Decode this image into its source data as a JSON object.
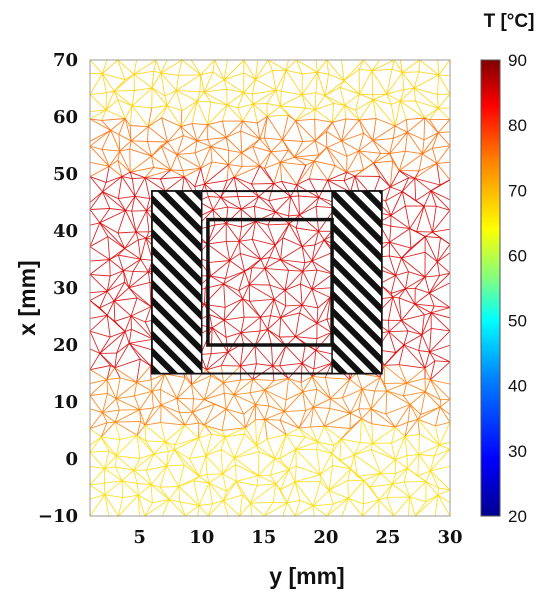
{
  "chart_data": {
    "type": "heatmap",
    "xlabel": "y [mm]",
    "ylabel": "x [mm]",
    "x_ticks": [
      "5",
      "10",
      "15",
      "20",
      "25",
      "30"
    ],
    "y_ticks": [
      "−10",
      "0",
      "10",
      "20",
      "30",
      "40",
      "50",
      "60",
      "70"
    ],
    "xlim": [
      1,
      30
    ],
    "ylim": [
      -10,
      70
    ],
    "colorbar": {
      "title": "T [°C]",
      "ticks": [
        "20",
        "30",
        "40",
        "50",
        "60",
        "70",
        "80",
        "90"
      ],
      "range": [
        20,
        90
      ],
      "colormap": [
        "#00008f",
        "#0000ff",
        "#0080ff",
        "#00ffff",
        "#80ff80",
        "#ffff00",
        "#ff8000",
        "#ff0000",
        "#800000"
      ]
    },
    "temperature_bands": [
      {
        "x_range": [
          60,
          70
        ],
        "temperature": 68
      },
      {
        "x_range": [
          50,
          60
        ],
        "temperature": 76
      },
      {
        "x_range": [
          15,
          50
        ],
        "temperature": 85
      },
      {
        "x_range": [
          5,
          15
        ],
        "temperature": 75
      },
      {
        "x_range": [
          -10,
          5
        ],
        "temperature": 67
      }
    ],
    "outer_rectangle": {
      "y_range": [
        6,
        24.5
      ],
      "x_range": [
        15,
        47
      ]
    },
    "inner_rectangle": {
      "y_range": [
        10.5,
        20.5
      ],
      "x_range": [
        20,
        42
      ]
    },
    "hatched_regions": [
      {
        "y_range": [
          6,
          10
        ],
        "x_range": [
          15,
          47
        ]
      },
      {
        "y_range": [
          20.5,
          24.5
        ],
        "x_range": [
          15,
          47
        ]
      }
    ]
  }
}
